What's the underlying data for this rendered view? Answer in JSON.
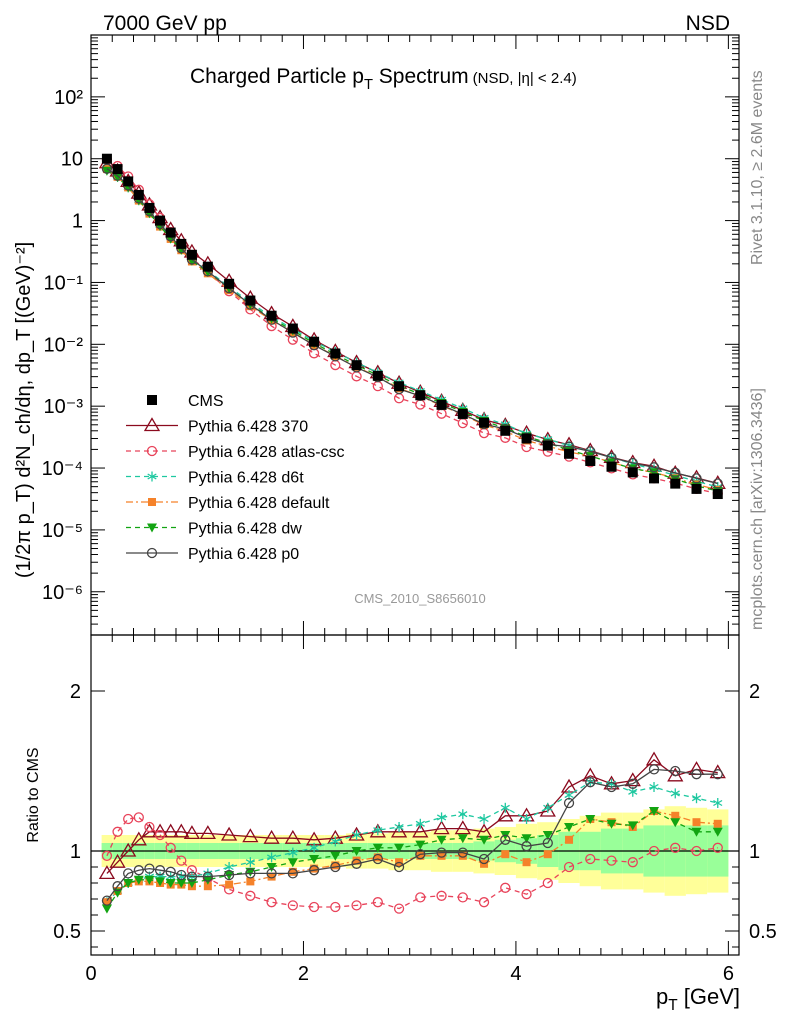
{
  "header": {
    "left": "7000 GeV pp",
    "right": "NSD"
  },
  "side_labels": {
    "top": "Rivet 3.1.10, ≥ 2.6M events",
    "bottom": "mcplots.cern.ch [arXiv:1306.3436]"
  },
  "watermark": "CMS_2010_S8656010",
  "colors": {
    "cms": "#000000",
    "p370": "#8b0a1e",
    "atlas": "#e8435a",
    "d6t": "#1ec8a0",
    "default": "#f5822a",
    "dw": "#12a412",
    "p0": "#444444",
    "band_yellow": "#ffff99",
    "band_green": "#99ff99"
  },
  "chart_data": [
    {
      "type": "line",
      "panel": "main",
      "title": "Charged Particle p_T Spectrum",
      "title_sub": "(NSD, |η| < 2.4)",
      "ylabel": "(1/2π p_T) d²N_ch/dη, dp_T [(GeV)⁻²]",
      "yscale": "log",
      "xlim": [
        0,
        6.1
      ],
      "ylim": [
        2e-07,
        1000
      ],
      "yticks": [
        "10⁻⁶",
        "10⁻⁵",
        "10⁻⁴",
        "10⁻³",
        "10⁻²",
        "10⁻¹",
        "1",
        "10",
        "10²"
      ],
      "x": [
        0.15,
        0.25,
        0.35,
        0.45,
        0.55,
        0.65,
        0.75,
        0.85,
        0.95,
        1.1,
        1.3,
        1.5,
        1.7,
        1.9,
        2.1,
        2.3,
        2.5,
        2.7,
        2.9,
        3.1,
        3.3,
        3.5,
        3.7,
        3.9,
        4.1,
        4.3,
        4.5,
        4.7,
        4.9,
        5.1,
        5.3,
        5.5,
        5.7,
        5.9
      ],
      "series": [
        {
          "name": "CMS",
          "key": "cms",
          "values": [
            10.0,
            6.8,
            4.3,
            2.6,
            1.6,
            1.0,
            0.64,
            0.42,
            0.28,
            0.18,
            0.095,
            0.051,
            0.029,
            0.018,
            0.011,
            0.0071,
            0.0046,
            0.0031,
            0.0021,
            0.0015,
            0.00105,
            0.00075,
            0.00054,
            0.0004,
            0.0003,
            0.00023,
            0.00017,
            0.00013,
            0.000105,
            8.5e-05,
            6.8e-05,
            5.6e-05,
            4.6e-05,
            3.8e-05
          ]
        },
        {
          "name": "Pythia 6.428 370",
          "key": "p370",
          "ratio": [
            0.86,
            0.93,
            1.0,
            1.07,
            1.12,
            1.12,
            1.12,
            1.12,
            1.11,
            1.11,
            1.1,
            1.09,
            1.08,
            1.08,
            1.07,
            1.08,
            1.1,
            1.12,
            1.12,
            1.12,
            1.14,
            1.14,
            1.12,
            1.22,
            1.22,
            1.25,
            1.4,
            1.47,
            1.42,
            1.44,
            1.57,
            1.47,
            1.51,
            1.49
          ]
        },
        {
          "name": "Pythia 6.428 atlas-csc",
          "key": "atlas",
          "ratio": [
            0.97,
            1.12,
            1.2,
            1.21,
            1.15,
            1.1,
            1.02,
            0.94,
            0.88,
            0.83,
            0.76,
            0.72,
            0.68,
            0.66,
            0.65,
            0.65,
            0.66,
            0.68,
            0.64,
            0.71,
            0.72,
            0.71,
            0.68,
            0.77,
            0.73,
            0.8,
            0.9,
            0.95,
            0.94,
            0.93,
            1.0,
            1.02,
            1.0,
            1.02
          ]
        },
        {
          "name": "Pythia 6.428 d6t",
          "key": "d6t",
          "ratio": [
            0.68,
            0.75,
            0.8,
            0.82,
            0.84,
            0.84,
            0.84,
            0.84,
            0.84,
            0.86,
            0.9,
            0.93,
            0.96,
            0.99,
            1.02,
            1.06,
            1.1,
            1.13,
            1.15,
            1.17,
            1.21,
            1.23,
            1.2,
            1.27,
            1.2,
            1.27,
            1.35,
            1.43,
            1.42,
            1.37,
            1.4,
            1.36,
            1.33,
            1.3
          ]
        },
        {
          "name": "Pythia 6.428 default",
          "key": "default",
          "ratio": [
            0.68,
            0.75,
            0.8,
            0.81,
            0.81,
            0.8,
            0.79,
            0.79,
            0.78,
            0.78,
            0.79,
            0.81,
            0.84,
            0.87,
            0.89,
            0.91,
            0.94,
            0.96,
            0.93,
            0.97,
            0.97,
            0.97,
            0.92,
            0.98,
            0.93,
            0.98,
            1.07,
            1.2,
            1.18,
            1.15,
            1.25,
            1.22,
            1.18,
            1.17
          ]
        },
        {
          "name": "Pythia 6.428 dw",
          "key": "dw",
          "ratio": [
            0.64,
            0.74,
            0.8,
            0.82,
            0.82,
            0.81,
            0.8,
            0.8,
            0.8,
            0.82,
            0.85,
            0.87,
            0.9,
            0.93,
            0.95,
            0.97,
            1.0,
            1.02,
            1.02,
            1.04,
            1.07,
            1.08,
            1.07,
            1.1,
            1.08,
            1.1,
            1.15,
            1.2,
            1.17,
            1.16,
            1.25,
            1.18,
            1.12,
            1.12
          ]
        },
        {
          "name": "Pythia 6.428 p0",
          "key": "p0",
          "ratio": [
            0.69,
            0.78,
            0.86,
            0.88,
            0.89,
            0.88,
            0.87,
            0.85,
            0.84,
            0.84,
            0.85,
            0.86,
            0.86,
            0.86,
            0.88,
            0.9,
            0.92,
            0.95,
            0.9,
            0.98,
            0.99,
            0.99,
            0.95,
            1.07,
            1.03,
            1.05,
            1.3,
            1.43,
            1.4,
            1.42,
            1.51,
            1.5,
            1.48,
            1.48
          ]
        }
      ]
    },
    {
      "type": "line",
      "panel": "ratio",
      "ylabel": "Ratio to CMS",
      "xlabel": "p_T [GeV]",
      "xlim": [
        0,
        6.1
      ],
      "ylim": [
        0.35,
        2.35
      ],
      "xticks": [
        0,
        2,
        4,
        6
      ],
      "yticks": [
        "0.5",
        "1",
        "2"
      ],
      "band_green_halfwidth": [
        0.05,
        0.05,
        0.05,
        0.05,
        0.05,
        0.05,
        0.05,
        0.05,
        0.05,
        0.05,
        0.05,
        0.05,
        0.05,
        0.05,
        0.05,
        0.05,
        0.05,
        0.05,
        0.05,
        0.05,
        0.05,
        0.05,
        0.06,
        0.07,
        0.08,
        0.1,
        0.12,
        0.12,
        0.14,
        0.14,
        0.16,
        0.16,
        0.16,
        0.16
      ],
      "band_yellow_halfwidth": [
        0.1,
        0.1,
        0.1,
        0.1,
        0.1,
        0.1,
        0.1,
        0.1,
        0.1,
        0.1,
        0.1,
        0.1,
        0.1,
        0.1,
        0.1,
        0.1,
        0.11,
        0.11,
        0.12,
        0.12,
        0.13,
        0.13,
        0.14,
        0.15,
        0.17,
        0.18,
        0.2,
        0.22,
        0.24,
        0.24,
        0.26,
        0.28,
        0.27,
        0.26
      ]
    }
  ],
  "legend": [
    {
      "label": "CMS",
      "key": "cms"
    },
    {
      "label": "Pythia 6.428 370",
      "key": "p370"
    },
    {
      "label": "Pythia 6.428 atlas-csc",
      "key": "atlas"
    },
    {
      "label": "Pythia 6.428 d6t",
      "key": "d6t"
    },
    {
      "label": "Pythia 6.428 default",
      "key": "default"
    },
    {
      "label": "Pythia 6.428 dw",
      "key": "dw"
    },
    {
      "label": "Pythia 6.428 p0",
      "key": "p0"
    }
  ]
}
